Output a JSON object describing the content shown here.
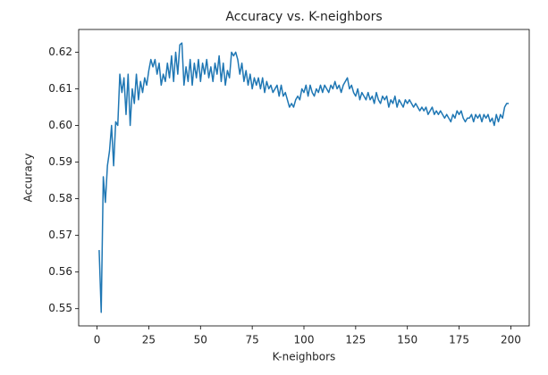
{
  "chart_data": {
    "type": "line",
    "title": "Accuracy vs. K-neighbors",
    "x_label": "K-neighbors",
    "y_label": "Accuracy",
    "color": "#1f77b4",
    "xlim": [
      -8.9,
      208.9
    ],
    "ylim": [
      0.5453,
      0.6262
    ],
    "xticks": [
      0,
      25,
      50,
      75,
      100,
      125,
      150,
      175,
      200
    ],
    "yticks": [
      0.55,
      0.56,
      0.57,
      0.58,
      0.59,
      {
        "value": 0.6,
        "label": "0.60"
      },
      0.61,
      0.62
    ],
    "x": [
      1,
      2,
      3,
      4,
      5,
      6,
      7,
      8,
      9,
      10,
      11,
      12,
      13,
      14,
      15,
      16,
      17,
      18,
      19,
      20,
      21,
      22,
      23,
      24,
      25,
      26,
      27,
      28,
      29,
      30,
      31,
      32,
      33,
      34,
      35,
      36,
      37,
      38,
      39,
      40,
      41,
      42,
      43,
      44,
      45,
      46,
      47,
      48,
      49,
      50,
      51,
      52,
      53,
      54,
      55,
      56,
      57,
      58,
      59,
      60,
      61,
      62,
      63,
      64,
      65,
      66,
      67,
      68,
      69,
      70,
      71,
      72,
      73,
      74,
      75,
      76,
      77,
      78,
      79,
      80,
      81,
      82,
      83,
      84,
      85,
      86,
      87,
      88,
      89,
      90,
      91,
      92,
      93,
      94,
      95,
      96,
      97,
      98,
      99,
      100,
      101,
      102,
      103,
      104,
      105,
      106,
      107,
      108,
      109,
      110,
      111,
      112,
      113,
      114,
      115,
      116,
      117,
      118,
      119,
      120,
      121,
      122,
      123,
      124,
      125,
      126,
      127,
      128,
      129,
      130,
      131,
      132,
      133,
      134,
      135,
      136,
      137,
      138,
      139,
      140,
      141,
      142,
      143,
      144,
      145,
      146,
      147,
      148,
      149,
      150,
      151,
      152,
      153,
      154,
      155,
      156,
      157,
      158,
      159,
      160,
      161,
      162,
      163,
      164,
      165,
      166,
      167,
      168,
      169,
      170,
      171,
      172,
      173,
      174,
      175,
      176,
      177,
      178,
      179,
      180,
      181,
      182,
      183,
      184,
      185,
      186,
      187,
      188,
      189,
      190,
      191,
      192,
      193,
      194,
      195,
      196,
      197,
      198,
      199
    ],
    "values": [
      0.566,
      0.549,
      0.586,
      0.579,
      0.589,
      0.593,
      0.6,
      0.589,
      0.601,
      0.6,
      0.614,
      0.609,
      0.613,
      0.603,
      0.614,
      0.6,
      0.61,
      0.606,
      0.614,
      0.607,
      0.612,
      0.609,
      0.613,
      0.611,
      0.615,
      0.618,
      0.616,
      0.618,
      0.614,
      0.617,
      0.611,
      0.614,
      0.612,
      0.617,
      0.613,
      0.619,
      0.612,
      0.62,
      0.614,
      0.622,
      0.6225,
      0.611,
      0.616,
      0.612,
      0.618,
      0.611,
      0.617,
      0.613,
      0.618,
      0.612,
      0.617,
      0.614,
      0.618,
      0.613,
      0.616,
      0.612,
      0.617,
      0.614,
      0.619,
      0.612,
      0.617,
      0.611,
      0.615,
      0.613,
      0.62,
      0.619,
      0.62,
      0.618,
      0.614,
      0.617,
      0.612,
      0.615,
      0.611,
      0.614,
      0.61,
      0.613,
      0.611,
      0.613,
      0.61,
      0.613,
      0.609,
      0.612,
      0.61,
      0.611,
      0.609,
      0.61,
      0.611,
      0.608,
      0.611,
      0.608,
      0.609,
      0.607,
      0.605,
      0.606,
      0.605,
      0.607,
      0.608,
      0.607,
      0.61,
      0.609,
      0.611,
      0.608,
      0.611,
      0.609,
      0.608,
      0.61,
      0.609,
      0.611,
      0.609,
      0.611,
      0.61,
      0.609,
      0.611,
      0.61,
      0.612,
      0.61,
      0.611,
      0.609,
      0.611,
      0.612,
      0.613,
      0.61,
      0.611,
      0.609,
      0.608,
      0.61,
      0.607,
      0.609,
      0.608,
      0.607,
      0.609,
      0.607,
      0.608,
      0.606,
      0.609,
      0.607,
      0.606,
      0.608,
      0.607,
      0.608,
      0.605,
      0.607,
      0.606,
      0.608,
      0.605,
      0.607,
      0.606,
      0.605,
      0.607,
      0.606,
      0.607,
      0.606,
      0.605,
      0.606,
      0.605,
      0.604,
      0.605,
      0.604,
      0.605,
      0.603,
      0.604,
      0.605,
      0.603,
      0.604,
      0.603,
      0.604,
      0.603,
      0.602,
      0.603,
      0.602,
      0.601,
      0.603,
      0.602,
      0.604,
      0.603,
      0.604,
      0.602,
      0.601,
      0.602,
      0.602,
      0.603,
      0.601,
      0.603,
      0.602,
      0.603,
      0.601,
      0.603,
      0.602,
      0.603,
      0.601,
      0.602,
      0.6,
      0.603,
      0.601,
      0.603,
      0.602,
      0.605,
      0.606,
      0.606
    ]
  }
}
